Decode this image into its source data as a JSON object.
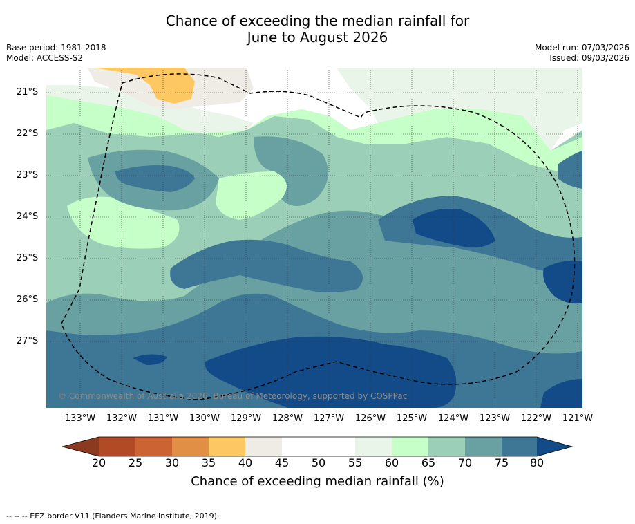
{
  "title": {
    "line1": "Chance of exceeding the median rainfall for",
    "line2": "June to August 2026"
  },
  "meta_left": {
    "base_period": "Base period: 1981-2018",
    "model": "Model: ACCESS-S2"
  },
  "meta_right": {
    "model_run": "Model run: 07/03/2026",
    "issued": "Issued: 09/03/2026"
  },
  "axes": {
    "lat_labels": [
      "21°S",
      "22°S",
      "23°S",
      "24°S",
      "25°S",
      "26°S",
      "27°S"
    ],
    "lon_labels": [
      "133°W",
      "132°W",
      "131°W",
      "130°W",
      "129°W",
      "128°W",
      "127°W",
      "126°W",
      "125°W",
      "124°W",
      "123°W",
      "122°W",
      "121°W"
    ]
  },
  "copyright": "© Commonwealth of Australia 2026, Bureau of Meteorology, supported by COSPPac",
  "colorbar": {
    "ticks": [
      "20",
      "25",
      "30",
      "35",
      "40",
      "45",
      "50",
      "55",
      "60",
      "65",
      "70",
      "75",
      "80"
    ],
    "label": "Chance of exceeding median rainfall (%)",
    "colors": {
      "below20": "#8b3a1f",
      "c20_25": "#b24a25",
      "c25_30": "#cc6333",
      "c30_35": "#e08f45",
      "c35_40": "#fdc862",
      "c40_45": "#efebe5",
      "c45_50": "#ffffff",
      "c50_55": "#ffffff",
      "c55_60": "#eaf5e9",
      "c60_65": "#c7ffc8",
      "c65_70": "#9bcfb7",
      "c70_75": "#69a1a2",
      "c75_80": "#3e7696",
      "above80": "#124b88"
    }
  },
  "footer": "--  --  -- EEZ border V11 (Flanders Marine Institute, 2019)."
}
